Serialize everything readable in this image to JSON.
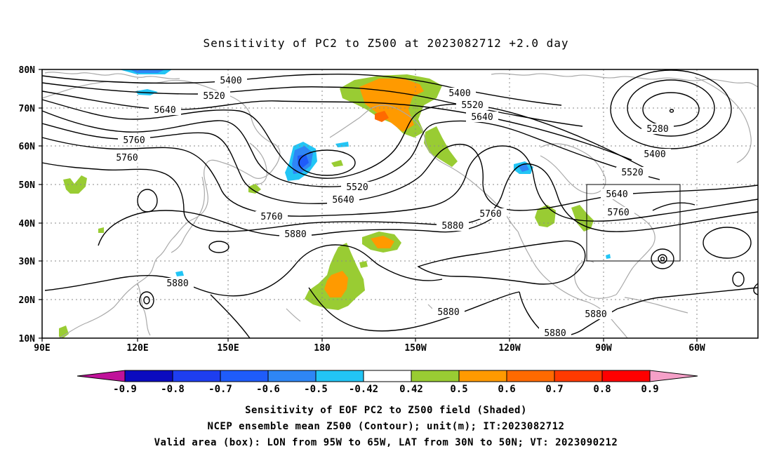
{
  "title": "Sensitivity of PC2 to Z500 at 2023082712 +2.0 day",
  "axes": {
    "lat_ticks": [
      "80N",
      "70N",
      "60N",
      "50N",
      "40N",
      "30N",
      "20N",
      "10N"
    ],
    "lon_ticks": [
      "90E",
      "120E",
      "150E",
      "180",
      "150W",
      "120W",
      "90W",
      "60W"
    ]
  },
  "contour_labels": [
    "5400",
    "5520",
    "5640",
    "5760",
    "5760",
    "5400",
    "5520",
    "5640",
    "5280",
    "5400",
    "5520",
    "5640",
    "5760",
    "5520",
    "5640",
    "5760",
    "5880",
    "5880",
    "5760",
    "5880",
    "5880",
    "5880"
  ],
  "colorbar": {
    "labels": [
      "-0.9",
      "-0.8",
      "-0.7",
      "-0.6",
      "-0.5",
      "-0.42",
      "0.42",
      "0.5",
      "0.6",
      "0.7",
      "0.8",
      "0.9"
    ],
    "colors": [
      "#c0129a",
      "#0b0bbf",
      "#1e3ef0",
      "#1f5cfa",
      "#2e86f5",
      "#22c5f5",
      "#ffffff",
      "#99cc33",
      "#ff9a00",
      "#ff6a00",
      "#ff3a00",
      "#ff0000",
      "#f5a0c8"
    ]
  },
  "footer": [
    "Sensitivity of EOF PC2 to Z500 field (Shaded)",
    "NCEP ensemble mean Z500 (Contour); unit(m); IT:2023082712",
    "Valid area (box): LON from 95W to 65W, LAT from 30N to 50N; VT: 2023090212"
  ]
}
